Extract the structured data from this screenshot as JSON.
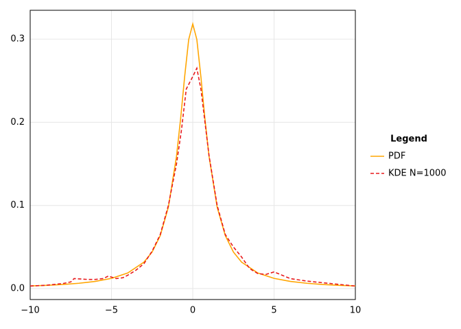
{
  "chart_data": {
    "type": "line",
    "xlim": [
      -10,
      10
    ],
    "ylim": [
      -0.0132,
      0.3347
    ],
    "xticks": [
      {
        "value": -10,
        "label": "−10"
      },
      {
        "value": -5,
        "label": "−5"
      },
      0,
      5,
      10
    ],
    "yticks": [
      {
        "value": 0,
        "label": "0.0"
      },
      0.1,
      0.2,
      0.3
    ],
    "grid": true,
    "legend_title": "Legend",
    "legend_position": "right",
    "series": [
      {
        "name": "PDF",
        "color": "#ffa500",
        "dash": "solid",
        "x": [
          -10,
          -9,
          -8,
          -7,
          -6,
          -5,
          -4,
          -3,
          -2.5,
          -2,
          -1.5,
          -1,
          -0.75,
          -0.5,
          -0.25,
          0,
          0.25,
          0.5,
          0.75,
          1,
          1.5,
          2,
          2.5,
          3,
          4,
          5,
          6,
          7,
          8,
          9,
          10
        ],
        "values": [
          0.00315,
          0.00388,
          0.0049,
          0.00637,
          0.0086,
          0.01224,
          0.01872,
          0.03183,
          0.0439,
          0.06366,
          0.09794,
          0.15915,
          0.20372,
          0.25465,
          0.29958,
          0.31831,
          0.29958,
          0.25465,
          0.20372,
          0.15915,
          0.09794,
          0.06366,
          0.0439,
          0.03183,
          0.01872,
          0.01224,
          0.0086,
          0.00637,
          0.0049,
          0.00388,
          0.00315
        ]
      },
      {
        "name": "KDE N=1000",
        "color": "#e8191b",
        "dash": "dashed",
        "x": [
          -10,
          -9,
          -8,
          -7.5,
          -7.3,
          -6.5,
          -6,
          -5.5,
          -5.2,
          -4.7,
          -4.3,
          -4,
          -3.5,
          -3,
          -2.5,
          -2,
          -1.5,
          -1,
          -0.7,
          -0.4,
          0,
          0.25,
          0.5,
          0.75,
          1,
          1.5,
          2,
          2.5,
          3,
          3.5,
          4,
          4.5,
          5,
          5.5,
          6,
          7,
          8,
          9,
          10
        ],
        "values": [
          0.003,
          0.004,
          0.006,
          0.008,
          0.012,
          0.011,
          0.011,
          0.012,
          0.015,
          0.012,
          0.013,
          0.016,
          0.022,
          0.03,
          0.045,
          0.065,
          0.1,
          0.15,
          0.19,
          0.24,
          0.255,
          0.265,
          0.24,
          0.2,
          0.16,
          0.1,
          0.065,
          0.05,
          0.038,
          0.024,
          0.018,
          0.017,
          0.02,
          0.016,
          0.012,
          0.009,
          0.007,
          0.005,
          0.003
        ]
      }
    ]
  }
}
